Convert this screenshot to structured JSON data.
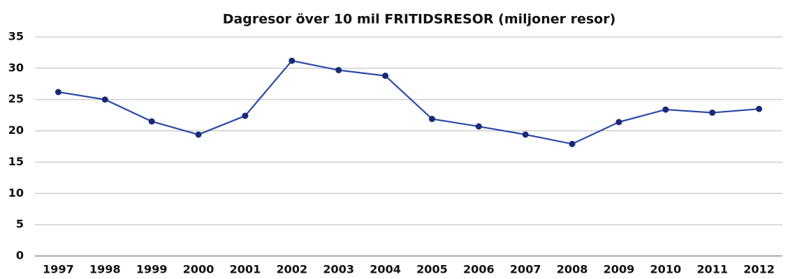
{
  "chart_data": {
    "type": "line",
    "title": "Dagresor över 10 mil FRITIDSRESOR (miljoner resor)",
    "categories": [
      "1997",
      "1998",
      "1999",
      "2000",
      "2001",
      "2002",
      "2003",
      "2004",
      "2005",
      "2006",
      "2007",
      "2008",
      "2009",
      "2010",
      "2011",
      "2012"
    ],
    "values": [
      26.2,
      25.0,
      21.5,
      19.4,
      22.4,
      31.2,
      29.7,
      28.8,
      21.9,
      20.7,
      19.4,
      17.9,
      21.4,
      23.4,
      22.9,
      23.5
    ],
    "color": "#2a48a8",
    "ylim": [
      0,
      35
    ],
    "yticks": [
      0,
      5,
      10,
      15,
      20,
      25,
      30,
      35
    ],
    "grid": true
  }
}
